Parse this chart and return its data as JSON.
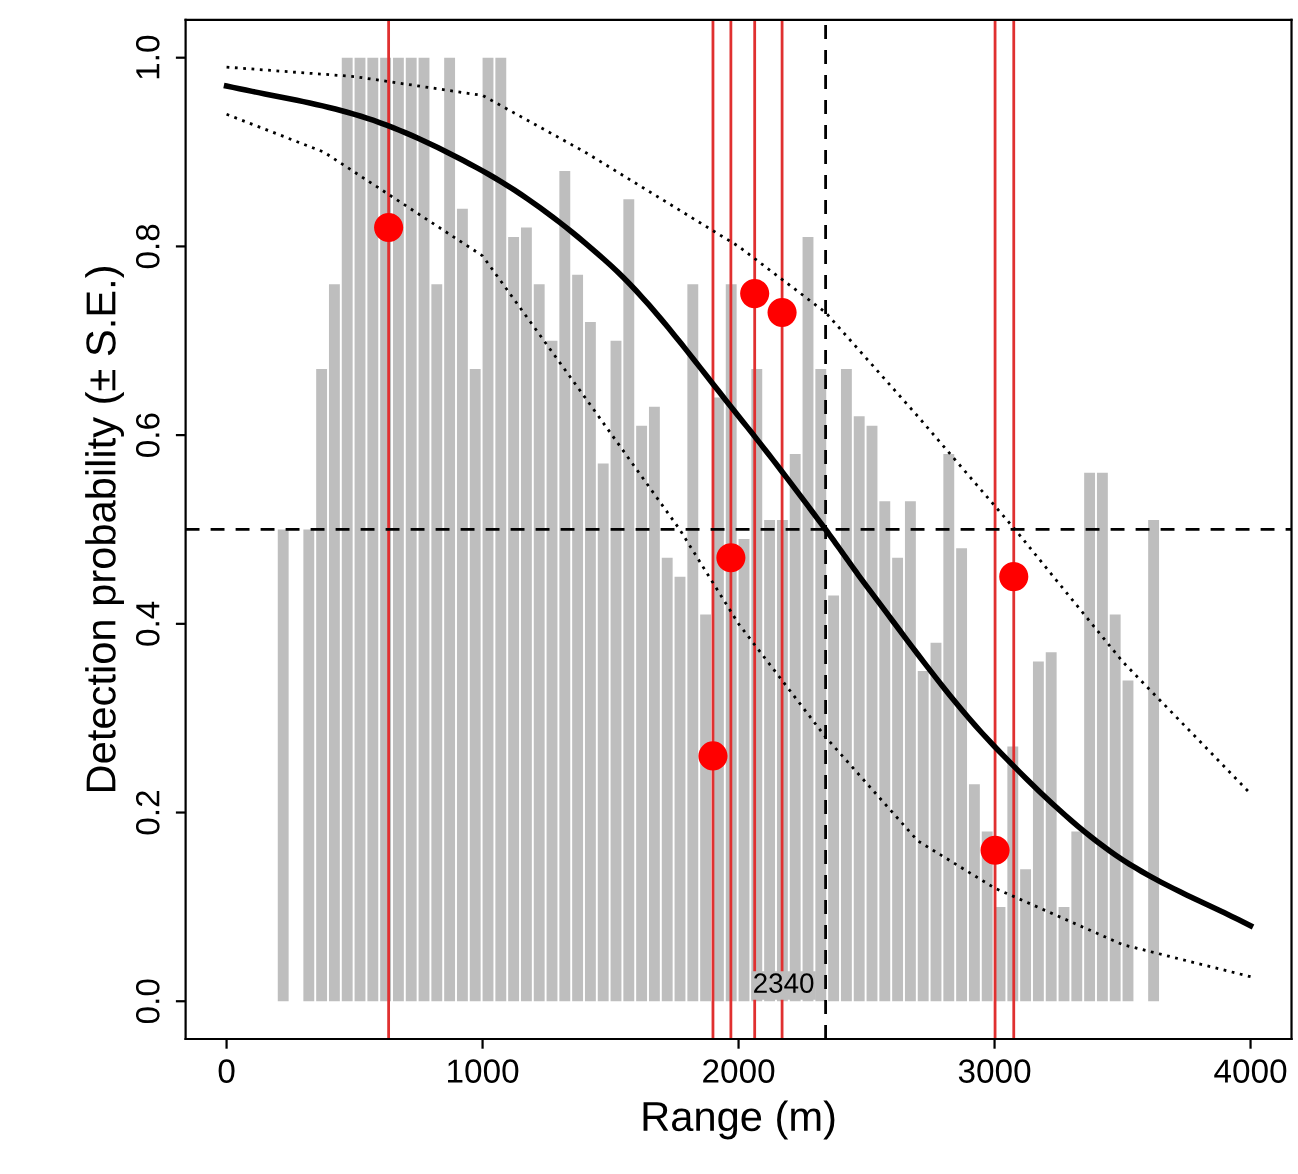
{
  "chart_data": {
    "type": "histogram",
    "xlabel": "Range (m)",
    "ylabel": "Detection probability (± S.E.)",
    "bins": [
      150,
      200,
      250,
      300,
      350,
      400,
      450,
      500,
      550,
      600,
      650,
      700,
      750,
      800,
      850,
      900,
      950,
      1000,
      1050,
      1100,
      1150,
      1200,
      1250,
      1300,
      1350,
      1400,
      1450,
      1500,
      1550,
      1600,
      1650,
      1700,
      1750,
      1800,
      1850,
      1900,
      1950,
      2000,
      2050,
      2100,
      2150,
      2200,
      2250,
      2300,
      2350,
      2400,
      2450,
      2500,
      2550,
      2600,
      2650,
      2700,
      2750,
      2800,
      2850,
      2900,
      2950,
      3000,
      3050,
      3100,
      3150,
      3200,
      3250,
      3300,
      3350,
      3400,
      3450,
      3500,
      3550,
      3600,
      3650
    ],
    "values": [
      0,
      0.5,
      0,
      0.5,
      0.67,
      0.76,
      1.0,
      1.0,
      1.0,
      1.0,
      1.0,
      1.0,
      1.0,
      0.76,
      1.0,
      0.84,
      0.67,
      1.0,
      1.0,
      0.81,
      0.82,
      0.76,
      0.7,
      0.88,
      0.77,
      0.72,
      0.57,
      0.7,
      0.85,
      0.61,
      0.63,
      0.47,
      0.45,
      0.76,
      0.41,
      0.64,
      0.76,
      0.49,
      0.67,
      0.51,
      0.51,
      0.58,
      0.81,
      0.67,
      0.43,
      0.67,
      0.62,
      0.61,
      0.53,
      0.47,
      0.53,
      0.35,
      0.38,
      0.58,
      0.48,
      0.23,
      0.18,
      0.1,
      0.27,
      0.14,
      0.36,
      0.37,
      0.1,
      0.18,
      0.56,
      0.56,
      0.41,
      0.34,
      0,
      0.51
    ],
    "color": "#bebebe",
    "series": [
      {
        "type": "line",
        "color": "#000000",
        "line_style": "solid",
        "x": [
          0,
          500,
          1000,
          1500,
          2000,
          2340,
          2500,
          3000,
          3500,
          4000
        ],
        "values": [
          0.97,
          0.94,
          0.88,
          0.78,
          0.62,
          0.5,
          0.44,
          0.27,
          0.15,
          0.08
        ]
      },
      {
        "type": "line",
        "color": "#000000",
        "line_style": "dotted",
        "x": [
          0,
          500,
          1000,
          1400,
          2000,
          2340,
          2700,
          3080,
          3500,
          4000
        ],
        "values": [
          0.99,
          0.98,
          0.96,
          0.9,
          0.8,
          0.73,
          0.62,
          0.5,
          0.36,
          0.22
        ]
      },
      {
        "type": "line",
        "color": "#000000",
        "line_style": "dotted",
        "x": [
          0,
          380,
          1000,
          1400,
          1770,
          2000,
          2340,
          2700,
          3000,
          3500,
          4000
        ],
        "values": [
          0.94,
          0.9,
          0.79,
          0.64,
          0.5,
          0.4,
          0.28,
          0.17,
          0.12,
          0.06,
          0.026
        ]
      },
      {
        "type": "scatter",
        "color": "#ff0000",
        "marker": "circle",
        "x": [
          633,
          1900,
          1970,
          2063,
          2170,
          3002,
          3075
        ],
        "values": [
          0.82,
          0.26,
          0.47,
          0.75,
          0.73,
          0.16,
          0.45
        ]
      }
    ],
    "ref_lines": [
      {
        "axis": "x",
        "value": 633,
        "color": "#e03030",
        "line_style": "solid"
      },
      {
        "axis": "x",
        "value": 1900,
        "color": "#e03030",
        "line_style": "solid"
      },
      {
        "axis": "x",
        "value": 1970,
        "color": "#e03030",
        "line_style": "solid"
      },
      {
        "axis": "x",
        "value": 2063,
        "color": "#e03030",
        "line_style": "solid"
      },
      {
        "axis": "x",
        "value": 2170,
        "color": "#e03030",
        "line_style": "solid"
      },
      {
        "axis": "x",
        "value": 3002,
        "color": "#e03030",
        "line_style": "solid"
      },
      {
        "axis": "x",
        "value": 3075,
        "color": "#e03030",
        "line_style": "solid"
      },
      {
        "axis": "x",
        "value": 2340,
        "label": "2340",
        "color": "#000000",
        "line_style": "dashed"
      },
      {
        "axis": "y",
        "value": 0.5,
        "color": "#000000",
        "line_style": "dashed"
      }
    ],
    "xlim": [
      -160,
      4160
    ],
    "ylim": [
      -0.04,
      1.04
    ],
    "xticks": [
      0,
      1000,
      2000,
      3000,
      4000
    ],
    "yticks": [
      {
        "value": 0,
        "label": "0.0"
      },
      {
        "value": 0.2,
        "label": "0.2"
      },
      {
        "value": 0.4,
        "label": "0.4"
      },
      {
        "value": 0.6,
        "label": "0.6"
      },
      {
        "value": 0.8,
        "label": "0.8"
      },
      {
        "value": 1.0,
        "label": "1.0"
      }
    ],
    "grid": false,
    "legend": false
  }
}
